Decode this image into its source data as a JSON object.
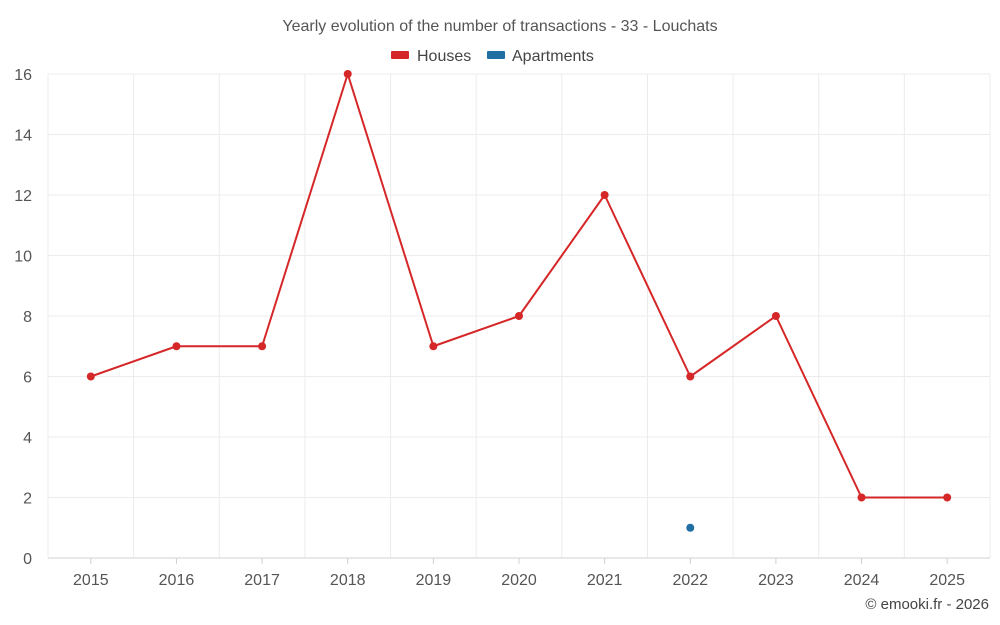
{
  "chart_data": {
    "type": "line",
    "title": "Yearly evolution of the number of transactions - 33 - Louchats",
    "categories": [
      "2015",
      "2016",
      "2017",
      "2018",
      "2019",
      "2020",
      "2021",
      "2022",
      "2023",
      "2024",
      "2025"
    ],
    "series": [
      {
        "name": "Houses",
        "color": "#d62728",
        "values": [
          6,
          7,
          7,
          16,
          7,
          8,
          12,
          6,
          8,
          2,
          2
        ]
      },
      {
        "name": "Apartments",
        "color": "#1f6fa3",
        "values": [
          null,
          null,
          null,
          null,
          null,
          null,
          null,
          1,
          null,
          null,
          null
        ]
      }
    ],
    "ylim": [
      0,
      16
    ],
    "yticks": [
      0,
      2,
      4,
      6,
      8,
      10,
      12,
      14,
      16
    ],
    "xlabel": "",
    "ylabel": "",
    "grid": true,
    "legend": "top-center"
  },
  "credit": "© emooki.fr - 2026"
}
